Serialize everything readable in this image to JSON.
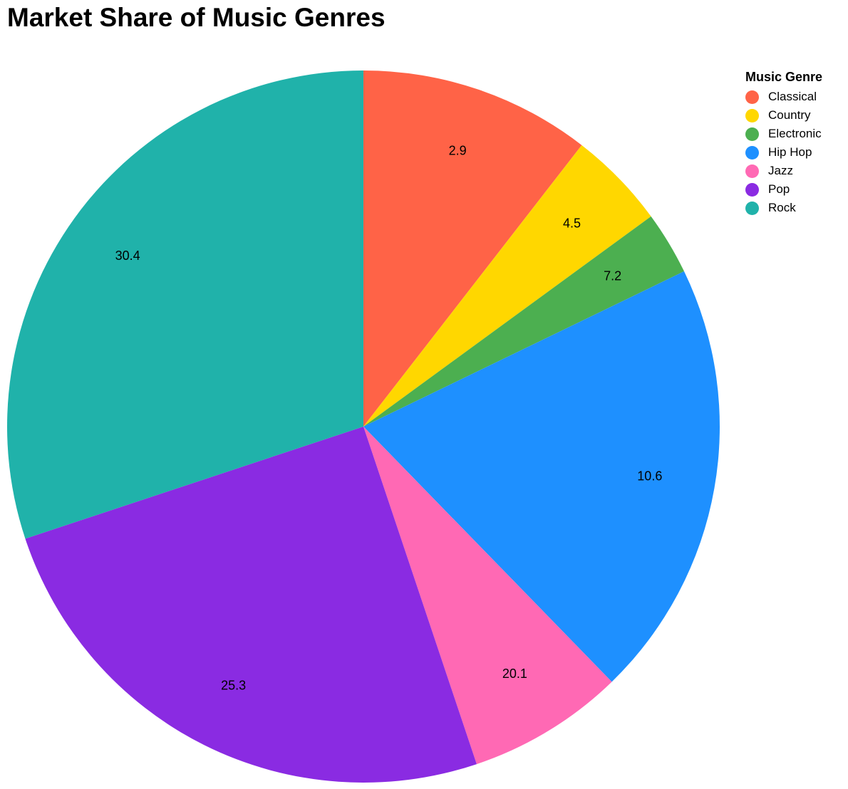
{
  "chart_data": {
    "type": "pie",
    "title": "Market Share of Music Genres",
    "legend_title": "Music Genre",
    "legend_position": "top-right",
    "categories": [
      "Classical",
      "Country",
      "Electronic",
      "Hip Hop",
      "Jazz",
      "Pop",
      "Rock"
    ],
    "values": [
      10.6,
      4.5,
      2.9,
      20.1,
      7.2,
      25.3,
      30.4
    ],
    "colors": [
      "#FF6347",
      "#FFD700",
      "#4CAF50",
      "#1E90FF",
      "#FF69B4",
      "#8A2BE2",
      "#20B2AA"
    ]
  }
}
